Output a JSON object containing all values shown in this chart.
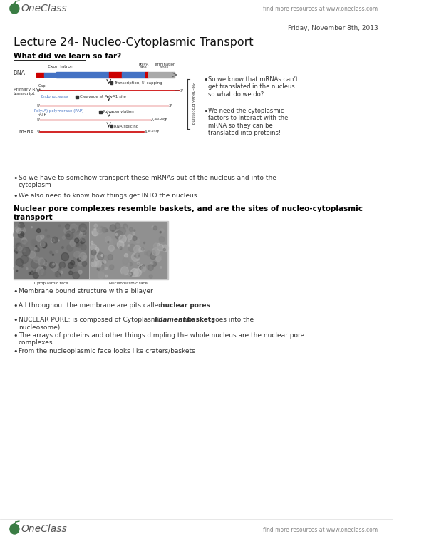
{
  "bg_color": "#ffffff",
  "header_right": "find more resources at www.oneclass.com",
  "footer_right": "find more resources at www.oneclass.com",
  "date": "Friday, November 8th, 2013",
  "title": "Lecture 24- Nucleo-Cytoplasmic Transport",
  "section1": "What did we learn so far?",
  "bullet1": "So we have to somehow transport these mRNAs out of the nucleus and into the\ncytoplasm",
  "bullet2": "We also need to know how things get INTO the nucleus",
  "section2": "Nuclear pore complexes resemble baskets, and are the sites of nucleo-cytoplasmic\ntransport",
  "right_bullet1": "So we know that mRNAs can’t\nget translated in the nucleus\nso what do we do?",
  "right_bullet2": "We need the cytoplasmic\nfactors to interact with the\nmRNA so they can be\ntranslated into proteins!",
  "bullet3": "Membrane bound structure with a bilayer",
  "bullet5_pre": "NUCLEAR PORE: is composed of Cytoplasmic ",
  "bullet5_bold1": "Filaments",
  "bullet5_bold2": "baskets",
  "bullet5_post": " (goes into the\nnucleosome)",
  "bullet6": "The arrays of proteins and other things dimpling the whole nucleus are the nuclear pore\ncomplexes",
  "bullet7": "From the nucleoplasmic face⁠ looks like craters/baskets",
  "green_color": "#3a7d44",
  "text_color": "#222222",
  "title_color": "#111111"
}
